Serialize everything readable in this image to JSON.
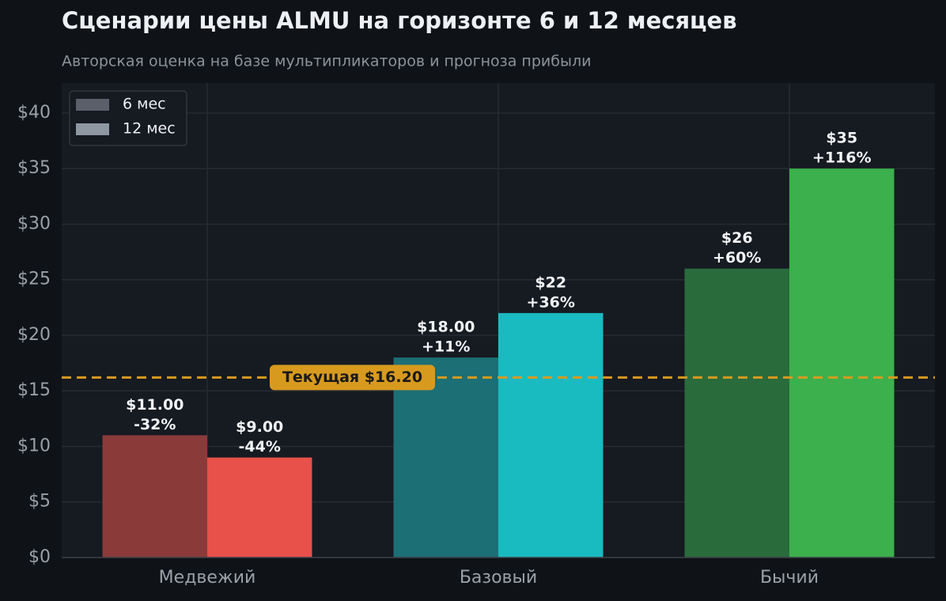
{
  "chart_data": {
    "type": "bar",
    "title": "Сценарии цены ALMU на горизонте 6 и 12 месяцев",
    "subtitle": "Авторская оценка на базе мультипликаторов и прогноза прибыли",
    "categories": [
      "Медвежий",
      "Базовый",
      "Бычий"
    ],
    "series": [
      {
        "name": "6 мес",
        "color": "#5a5f6a",
        "colors": [
          "#8b3a3a",
          "#1b6f75",
          "#2a6b3c"
        ],
        "values": [
          11,
          18,
          26
        ],
        "value_labels": [
          "$11.00",
          "$18.00",
          "$26"
        ],
        "change_labels": [
          "-32%",
          "+11%",
          "+60%"
        ]
      },
      {
        "name": "12 мес",
        "color": "#8e98a2",
        "colors": [
          "#e8504a",
          "#1abac1",
          "#3cb04c"
        ],
        "values": [
          9,
          22,
          35
        ],
        "value_labels": [
          "$9.00",
          "$22",
          "$35"
        ],
        "change_labels": [
          "-44%",
          "+36%",
          "+116%"
        ]
      }
    ],
    "ylim": [
      0,
      42.7
    ],
    "yticks": [
      {
        "value": 0,
        "label": "$0"
      },
      {
        "value": 5,
        "label": "$5"
      },
      {
        "value": 10,
        "label": "$10"
      },
      {
        "value": 15,
        "label": "$15"
      },
      {
        "value": 20,
        "label": "$20"
      },
      {
        "value": 25,
        "label": "$25"
      },
      {
        "value": 30,
        "label": "$30"
      },
      {
        "value": 35,
        "label": "$35"
      },
      {
        "value": 40,
        "label": "$40"
      }
    ],
    "reference": {
      "value": 16.2,
      "label": "Текущая $16.20",
      "color": "#d89a1e"
    },
    "grid": true,
    "legend": "upper-left"
  }
}
